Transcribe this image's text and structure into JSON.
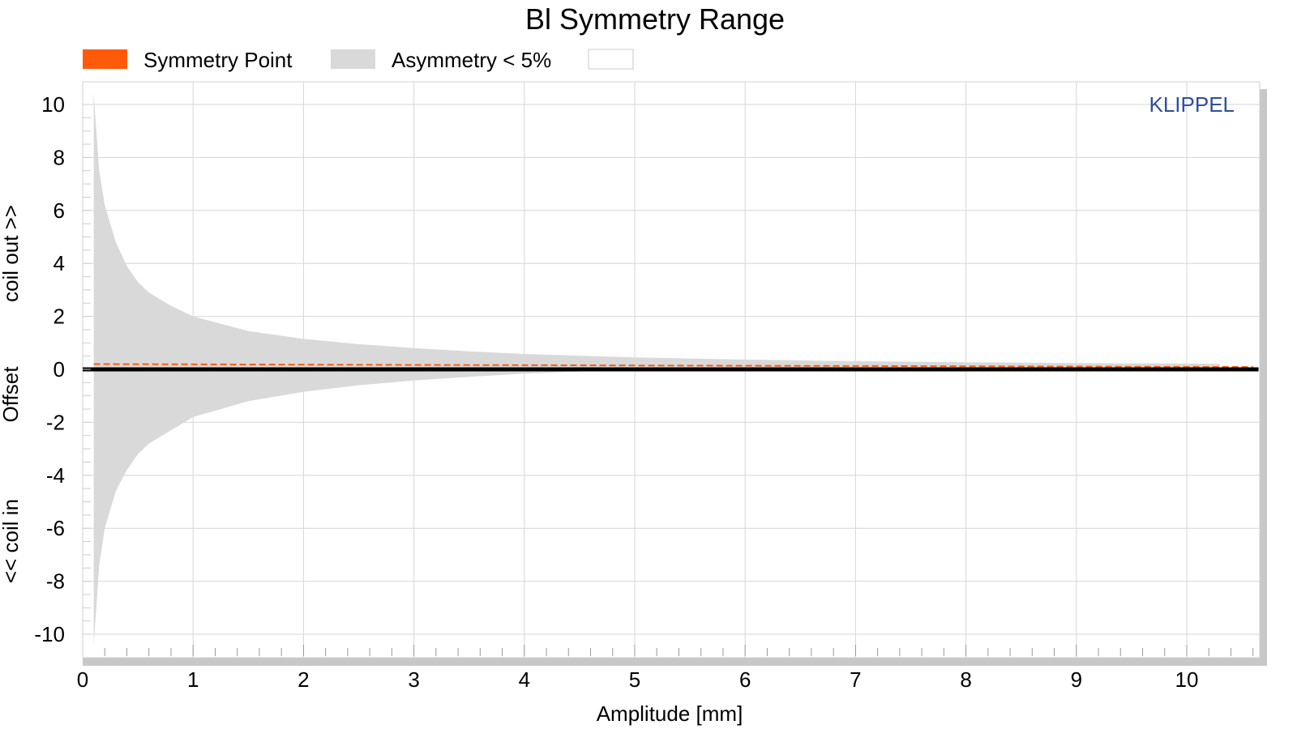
{
  "chart_data": {
    "type": "area",
    "title": "Bl Symmetry Range",
    "xlabel": "Amplitude [mm]",
    "ylabel_parts": [
      "<< coil in",
      "Offset",
      "coil out >>"
    ],
    "xlim": [
      0,
      10.65
    ],
    "ylim": [
      -10.5,
      10.5
    ],
    "xticks": [
      0,
      1,
      2,
      3,
      4,
      5,
      6,
      7,
      8,
      9,
      10
    ],
    "yticks": [
      -10,
      -8,
      -6,
      -4,
      -2,
      0,
      2,
      4,
      6,
      8,
      10
    ],
    "grid": true,
    "legend_position": "top-left",
    "legend": [
      {
        "label": "Symmetry Point",
        "color": "#ff5a0a"
      },
      {
        "label": "Asymmetry < 5%",
        "color": "#d9d9d9"
      },
      {
        "label": "",
        "color": "#ffffff"
      }
    ],
    "watermark": "KLIPPEL",
    "watermark_color": "#2f4f9a",
    "series": [
      {
        "name": "Symmetry Point",
        "kind": "line",
        "color": "#ff5a0a",
        "x": [
          0.1,
          10.6
        ],
        "y": [
          0.2,
          0.09
        ]
      },
      {
        "name": "Asymmetry < 5%",
        "kind": "band",
        "color": "#d9d9d9",
        "x": [
          0.1,
          0.15,
          0.2,
          0.3,
          0.4,
          0.5,
          0.6,
          0.8,
          1.0,
          1.5,
          2.0,
          2.5,
          3.0,
          3.5,
          4.0,
          5.0,
          6.0,
          7.0,
          8.0,
          9.0,
          10.0,
          10.3
        ],
        "upper": [
          10.4,
          7.5,
          6.2,
          4.8,
          3.9,
          3.3,
          2.9,
          2.4,
          2.0,
          1.45,
          1.15,
          0.95,
          0.8,
          0.68,
          0.58,
          0.45,
          0.37,
          0.31,
          0.27,
          0.24,
          0.22,
          0.21
        ],
        "lower": [
          -10.4,
          -7.4,
          -6.0,
          -4.6,
          -3.8,
          -3.2,
          -2.8,
          -2.3,
          -1.8,
          -1.2,
          -0.85,
          -0.6,
          -0.42,
          -0.28,
          -0.16,
          0.0,
          0.05,
          0.06,
          0.07,
          0.08,
          0.08,
          0.08
        ]
      },
      {
        "name": "Zero line",
        "kind": "line",
        "color": "#000000",
        "x": [
          0,
          10.65
        ],
        "y": [
          0,
          0
        ]
      }
    ]
  }
}
